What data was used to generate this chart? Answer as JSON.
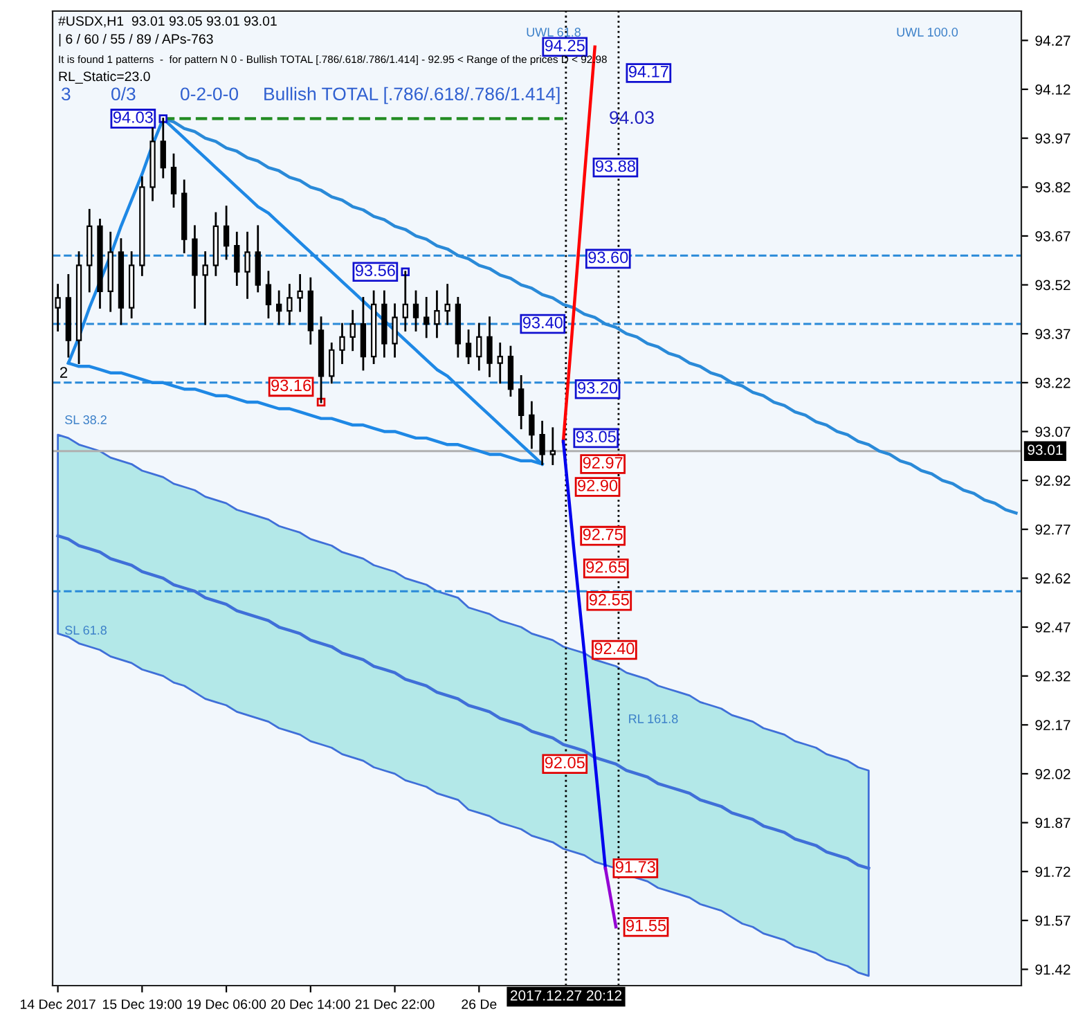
{
  "chart_data": {
    "type": "candlestick",
    "color": "#000000",
    "categories": [
      "14 Dec 2017",
      null,
      null,
      null,
      null,
      null,
      null,
      null,
      "15 Dec 19:00",
      null,
      null,
      null,
      null,
      null,
      null,
      null,
      "19 Dec 06:00",
      null,
      null,
      null,
      null,
      null,
      null,
      null,
      "20 Dec 14:00",
      null,
      null,
      null,
      null,
      null,
      null,
      null,
      "21 Dec 22:00",
      null,
      null,
      null,
      null,
      null,
      null,
      null,
      "26 De",
      null,
      null,
      null,
      null,
      null,
      null,
      null,
      null,
      null,
      null,
      null,
      null,
      null,
      null,
      null,
      null,
      null,
      null,
      null,
      null,
      null,
      null,
      null,
      null,
      null,
      null,
      null,
      null,
      null,
      null,
      null,
      null,
      null,
      null,
      null,
      null,
      null,
      null,
      null,
      null,
      null,
      null,
      null,
      null,
      null,
      null,
      null,
      null,
      null,
      null,
      null
    ],
    "ohlc": [
      [
        93.45,
        93.52,
        93.38,
        93.48
      ],
      [
        93.48,
        93.55,
        93.3,
        93.35
      ],
      [
        93.35,
        93.62,
        93.28,
        93.58
      ],
      [
        93.58,
        93.75,
        93.5,
        93.7
      ],
      [
        93.7,
        93.72,
        93.45,
        93.5
      ],
      [
        93.5,
        93.68,
        93.44,
        93.62
      ],
      [
        93.62,
        93.66,
        93.4,
        93.45
      ],
      [
        93.45,
        93.62,
        93.42,
        93.58
      ],
      [
        93.58,
        93.85,
        93.55,
        93.82
      ],
      [
        93.82,
        94.0,
        93.78,
        93.96
      ],
      [
        93.96,
        94.03,
        93.85,
        93.88
      ],
      [
        93.88,
        93.92,
        93.76,
        93.8
      ],
      [
        93.8,
        93.84,
        93.62,
        93.66
      ],
      [
        93.66,
        93.7,
        93.45,
        93.55
      ],
      [
        93.55,
        93.62,
        93.4,
        93.58
      ],
      [
        93.58,
        93.74,
        93.55,
        93.7
      ],
      [
        93.7,
        93.76,
        93.6,
        93.64
      ],
      [
        93.64,
        93.68,
        93.52,
        93.56
      ],
      [
        93.56,
        93.68,
        93.48,
        93.62
      ],
      [
        93.62,
        93.7,
        93.5,
        93.52
      ],
      [
        93.52,
        93.56,
        93.42,
        93.46
      ],
      [
        93.46,
        93.5,
        93.4,
        93.44
      ],
      [
        93.44,
        93.52,
        93.4,
        93.48
      ],
      [
        93.48,
        93.55,
        93.44,
        93.5
      ],
      [
        93.5,
        93.54,
        93.34,
        93.38
      ],
      [
        93.38,
        93.42,
        93.16,
        93.24
      ],
      [
        93.24,
        93.34,
        93.22,
        93.32
      ],
      [
        93.32,
        93.4,
        93.28,
        93.36
      ],
      [
        93.36,
        93.44,
        93.32,
        93.4
      ],
      [
        93.4,
        93.48,
        93.26,
        93.3
      ],
      [
        93.3,
        93.5,
        93.28,
        93.46
      ],
      [
        93.46,
        93.5,
        93.3,
        93.34
      ],
      [
        93.34,
        93.46,
        93.3,
        93.42
      ],
      [
        93.42,
        93.56,
        93.38,
        93.46
      ],
      [
        93.46,
        93.5,
        93.38,
        93.42
      ],
      [
        93.42,
        93.48,
        93.36,
        93.4
      ],
      [
        93.4,
        93.5,
        93.36,
        93.44
      ],
      [
        93.44,
        93.52,
        93.4,
        93.46
      ],
      [
        93.46,
        93.48,
        93.3,
        93.34
      ],
      [
        93.34,
        93.38,
        93.28,
        93.3
      ],
      [
        93.3,
        93.4,
        93.26,
        93.36
      ],
      [
        93.36,
        93.42,
        93.24,
        93.28
      ],
      [
        93.28,
        93.34,
        93.22,
        93.3
      ],
      [
        93.3,
        93.33,
        93.18,
        93.2
      ],
      [
        93.2,
        93.24,
        93.08,
        93.12
      ],
      [
        93.12,
        93.16,
        93.02,
        93.06
      ],
      [
        93.06,
        93.1,
        92.97,
        93.0
      ],
      [
        93.0,
        93.08,
        92.97,
        93.01
      ],
      null,
      null,
      null,
      null,
      null,
      null,
      null,
      null,
      null,
      null,
      null,
      null,
      null,
      null,
      null,
      null,
      null,
      null,
      null,
      null,
      null,
      null,
      null,
      null,
      null,
      null,
      null,
      null,
      null,
      null,
      null,
      null,
      null,
      null,
      null,
      null,
      null,
      null,
      null,
      null,
      null,
      null,
      null,
      null
    ],
    "series": [
      {
        "type": "line",
        "color": "#1e88e5",
        "line_style": "solid",
        "values": [
          null,
          93.28,
          93.36,
          93.45,
          93.53,
          93.61,
          93.7,
          93.78,
          93.86,
          93.95,
          94.03,
          null,
          null,
          null,
          null,
          null,
          null,
          null,
          null,
          null,
          null,
          null,
          null,
          null,
          null,
          null,
          null,
          null,
          null,
          null,
          null,
          null,
          null,
          null,
          null,
          null,
          null,
          null,
          null,
          null,
          null,
          null,
          null,
          null,
          null,
          null,
          null,
          null,
          null,
          null,
          null,
          null,
          null,
          null,
          null,
          null,
          null,
          null,
          null,
          null,
          null,
          null,
          null,
          null,
          null,
          null,
          null,
          null,
          null,
          null,
          null,
          null,
          null,
          null,
          null,
          null,
          null,
          null,
          null,
          null,
          null,
          null,
          null,
          null,
          null,
          null,
          null,
          null,
          null,
          null,
          null,
          null
        ]
      },
      {
        "type": "line",
        "color": "#1e88e5",
        "line_style": "solid",
        "values": [
          null,
          null,
          null,
          null,
          null,
          null,
          null,
          null,
          null,
          null,
          94.03,
          94.0,
          93.97,
          93.94,
          93.91,
          93.88,
          93.85,
          93.82,
          93.79,
          93.76,
          93.74,
          93.71,
          93.68,
          93.65,
          93.62,
          93.59,
          93.56,
          93.53,
          93.5,
          93.47,
          93.44,
          93.41,
          93.38,
          93.35,
          93.32,
          93.29,
          93.26,
          93.24,
          93.21,
          93.18,
          93.15,
          93.12,
          93.09,
          93.06,
          93.03,
          93.0,
          92.97,
          null,
          null,
          null,
          null,
          null,
          null,
          null,
          null,
          null,
          null,
          null,
          null,
          null,
          null,
          null,
          null,
          null,
          null,
          null,
          null,
          null,
          null,
          null,
          null,
          null,
          null,
          null,
          null,
          null,
          null,
          null,
          null,
          null,
          null,
          null,
          null,
          null,
          null,
          null,
          null,
          null,
          null,
          null,
          null,
          null
        ]
      },
      {
        "type": "line",
        "color": "#1e88e5",
        "line_style": "solid",
        "values": [
          null,
          93.28,
          93.27,
          93.27,
          93.26,
          93.25,
          93.25,
          93.24,
          93.23,
          93.22,
          93.22,
          93.21,
          93.2,
          93.2,
          93.19,
          93.18,
          93.18,
          93.17,
          93.16,
          93.16,
          93.15,
          93.14,
          93.14,
          93.13,
          93.12,
          93.11,
          93.11,
          93.1,
          93.09,
          93.09,
          93.08,
          93.07,
          93.07,
          93.06,
          93.05,
          93.05,
          93.04,
          93.03,
          93.03,
          93.02,
          93.01,
          93.0,
          93.0,
          92.99,
          92.98,
          92.98,
          92.97,
          null,
          null,
          null,
          null,
          null,
          null,
          null,
          null,
          null,
          null,
          null,
          null,
          null,
          null,
          null,
          null,
          null,
          null,
          null,
          null,
          null,
          null,
          null,
          null,
          null,
          null,
          null,
          null,
          null,
          null,
          null,
          null,
          null,
          null,
          null,
          null,
          null,
          null,
          null,
          null,
          null,
          null,
          null,
          null,
          null
        ]
      },
      {
        "type": "line",
        "color": "#3f6fd8",
        "line_style": "solid",
        "values": [
          92.75,
          92.74,
          92.72,
          92.71,
          92.7,
          92.68,
          92.67,
          92.66,
          92.64,
          92.63,
          92.62,
          92.6,
          92.59,
          92.58,
          92.56,
          92.55,
          92.54,
          92.52,
          92.51,
          92.5,
          92.49,
          92.47,
          92.46,
          92.45,
          92.43,
          92.42,
          92.41,
          92.39,
          92.38,
          92.37,
          92.35,
          92.34,
          92.33,
          92.31,
          92.3,
          92.29,
          92.27,
          92.26,
          92.25,
          92.23,
          92.22,
          92.21,
          92.19,
          92.18,
          92.17,
          92.15,
          92.14,
          92.13,
          92.11,
          92.1,
          92.09,
          92.07,
          92.06,
          92.05,
          92.03,
          92.02,
          92.01,
          91.99,
          91.98,
          91.97,
          91.96,
          91.94,
          91.93,
          91.92,
          91.9,
          91.89,
          91.88,
          91.86,
          91.85,
          91.84,
          91.82,
          91.81,
          91.8,
          91.78,
          91.77,
          91.76,
          91.74,
          91.73,
          null,
          null,
          null,
          null,
          null,
          null,
          null,
          null,
          null,
          null,
          null,
          null,
          null,
          null
        ],
        "lower": [
          92.45,
          92.44,
          92.42,
          92.41,
          92.4,
          92.38,
          92.37,
          92.36,
          92.34,
          92.33,
          92.32,
          92.3,
          92.29,
          92.27,
          92.25,
          92.24,
          92.23,
          92.21,
          92.2,
          92.19,
          92.18,
          92.16,
          92.15,
          92.14,
          92.12,
          92.11,
          92.1,
          92.08,
          92.07,
          92.06,
          92.04,
          92.03,
          92.02,
          92.0,
          91.99,
          91.98,
          91.96,
          91.95,
          91.94,
          91.91,
          91.9,
          91.89,
          91.87,
          91.86,
          91.85,
          91.83,
          91.82,
          91.81,
          91.79,
          91.78,
          91.77,
          91.75,
          91.74,
          91.73,
          91.71,
          91.7,
          91.69,
          91.67,
          91.66,
          91.65,
          91.64,
          91.62,
          91.61,
          91.6,
          91.58,
          91.56,
          91.55,
          91.53,
          91.52,
          91.51,
          91.49,
          91.48,
          91.47,
          91.45,
          91.44,
          91.43,
          91.41,
          91.4,
          null,
          null,
          null,
          null,
          null,
          null,
          null,
          null,
          null,
          null,
          null,
          null,
          null,
          null
        ],
        "upper": [
          93.06,
          93.05,
          93.03,
          93.02,
          93.01,
          92.99,
          92.98,
          92.97,
          92.95,
          92.94,
          92.93,
          92.91,
          92.9,
          92.89,
          92.87,
          92.86,
          92.85,
          92.83,
          92.82,
          92.81,
          92.8,
          92.78,
          92.77,
          92.76,
          92.74,
          92.73,
          92.72,
          92.7,
          92.69,
          92.68,
          92.66,
          92.65,
          92.64,
          92.62,
          92.61,
          92.6,
          92.58,
          92.57,
          92.56,
          92.53,
          92.52,
          92.51,
          92.49,
          92.48,
          92.47,
          92.45,
          92.44,
          92.43,
          92.41,
          92.4,
          92.39,
          92.37,
          92.36,
          92.35,
          92.33,
          92.32,
          92.31,
          92.29,
          92.28,
          92.27,
          92.26,
          92.24,
          92.23,
          92.22,
          92.2,
          92.19,
          92.18,
          92.16,
          92.15,
          92.14,
          92.12,
          92.11,
          92.1,
          92.08,
          92.07,
          92.06,
          92.04,
          92.03,
          null,
          null,
          null,
          null,
          null,
          null,
          null,
          null,
          null,
          null,
          null,
          null,
          null,
          null
        ]
      },
      {
        "type": "line",
        "color": "#2a8ad8",
        "line_style": "solid",
        "values": [
          null,
          null,
          null,
          null,
          null,
          null,
          null,
          null,
          null,
          null,
          94.03,
          94.02,
          94.0,
          93.99,
          93.97,
          93.96,
          93.94,
          93.93,
          93.91,
          93.9,
          93.88,
          93.87,
          93.85,
          93.84,
          93.82,
          93.81,
          93.79,
          93.78,
          93.76,
          93.75,
          93.73,
          93.72,
          93.7,
          93.69,
          93.67,
          93.66,
          93.64,
          93.63,
          93.61,
          93.6,
          93.58,
          93.57,
          93.55,
          93.54,
          93.52,
          93.51,
          93.49,
          93.48,
          93.46,
          93.45,
          93.43,
          93.42,
          93.4,
          93.39,
          93.37,
          93.36,
          93.34,
          93.33,
          93.31,
          93.3,
          93.28,
          93.27,
          93.25,
          93.24,
          93.22,
          93.21,
          93.19,
          93.18,
          93.16,
          93.15,
          93.13,
          93.12,
          93.1,
          93.09,
          93.07,
          93.06,
          93.04,
          93.03,
          93.01,
          93.0,
          92.98,
          92.97,
          92.95,
          92.94,
          92.92,
          92.91,
          92.89,
          92.88,
          92.86,
          92.85,
          92.83,
          92.82
        ]
      },
      {
        "type": "line",
        "color": "#228b22",
        "line_style": "dashed",
        "values": [
          null,
          null,
          null,
          null,
          null,
          null,
          null,
          null,
          null,
          null,
          94.03,
          94.03,
          94.03,
          94.03,
          94.03,
          94.03,
          94.03,
          94.03,
          94.03,
          94.03,
          94.03,
          94.03,
          94.03,
          94.03,
          94.03,
          94.03,
          94.03,
          94.03,
          94.03,
          94.03,
          94.03,
          94.03,
          94.03,
          94.03,
          94.03,
          94.03,
          94.03,
          94.03,
          94.03,
          94.03,
          94.03,
          94.03,
          94.03,
          94.03,
          94.03,
          94.03,
          94.03,
          94.03,
          94.03,
          null,
          null,
          null,
          null,
          null,
          null,
          null,
          null,
          null,
          null,
          null,
          null,
          null,
          null,
          null,
          null,
          null,
          null,
          null,
          null,
          null,
          null,
          null,
          null,
          null,
          null,
          null,
          null,
          null,
          null,
          null,
          null,
          null,
          null,
          null,
          null,
          null,
          null,
          null,
          null,
          null,
          null,
          null
        ]
      },
      {
        "type": "line",
        "color": "#ff0000",
        "line_style": "solid",
        "values": [
          null,
          null,
          null,
          null,
          null,
          null,
          null,
          null,
          null,
          null,
          null,
          null,
          null,
          null,
          null,
          null,
          null,
          null,
          null,
          null,
          null,
          null,
          null,
          null,
          null,
          null,
          null,
          null,
          null,
          null,
          null,
          null,
          null,
          null,
          null,
          null,
          null,
          null,
          null,
          null,
          null,
          null,
          null,
          null,
          null,
          null,
          null,
          null,
          93.04,
          93.44,
          93.85,
          94.25,
          null,
          null,
          null,
          null,
          null,
          null,
          null,
          null,
          null,
          null,
          null,
          null,
          null,
          null,
          null,
          null,
          null,
          null,
          null,
          null,
          null,
          null,
          null,
          null,
          null,
          null,
          null,
          null,
          null,
          null,
          null,
          null,
          null,
          null,
          null,
          null,
          null,
          null,
          null,
          null
        ]
      },
      {
        "type": "line",
        "color": "#0000ee",
        "line_style": "solid",
        "values": [
          null,
          null,
          null,
          null,
          null,
          null,
          null,
          null,
          null,
          null,
          null,
          null,
          null,
          null,
          null,
          null,
          null,
          null,
          null,
          null,
          null,
          null,
          null,
          null,
          null,
          null,
          null,
          null,
          null,
          null,
          null,
          null,
          null,
          null,
          null,
          null,
          null,
          null,
          null,
          null,
          null,
          null,
          null,
          null,
          null,
          null,
          null,
          null,
          93.04,
          92.71,
          92.39,
          92.06,
          91.73,
          null,
          null,
          null,
          null,
          null,
          null,
          null,
          null,
          null,
          null,
          null,
          null,
          null,
          null,
          null,
          null,
          null,
          null,
          null,
          null,
          null,
          null,
          null,
          null,
          null,
          null,
          null,
          null,
          null,
          null,
          null,
          null,
          null,
          null,
          null,
          null,
          null,
          null,
          null
        ]
      },
      {
        "type": "line",
        "color": "#9400d3",
        "line_style": "solid",
        "values": [
          null,
          null,
          null,
          null,
          null,
          null,
          null,
          null,
          null,
          null,
          null,
          null,
          null,
          null,
          null,
          null,
          null,
          null,
          null,
          null,
          null,
          null,
          null,
          null,
          null,
          null,
          null,
          null,
          null,
          null,
          null,
          null,
          null,
          null,
          null,
          null,
          null,
          null,
          null,
          null,
          null,
          null,
          null,
          null,
          null,
          null,
          null,
          null,
          null,
          null,
          null,
          null,
          91.73,
          91.55,
          null,
          null,
          null,
          null,
          null,
          null,
          null,
          null,
          null,
          null,
          null,
          null,
          null,
          null,
          null,
          null,
          null,
          null,
          null,
          null,
          null,
          null,
          null,
          null,
          null,
          null,
          null,
          null,
          null,
          null,
          null,
          null,
          null,
          null,
          null,
          null,
          null,
          null
        ]
      },
      {
        "type": "scatter",
        "marker": "square",
        "values": [
          null,
          null,
          null,
          null,
          null,
          null,
          null,
          null,
          null,
          null,
          94.03,
          null,
          null,
          null,
          null,
          null,
          null,
          null,
          null,
          null,
          null,
          null,
          null,
          null,
          null,
          93.16,
          null,
          null,
          null,
          null,
          null,
          null,
          null,
          93.56,
          null,
          null,
          null,
          null,
          null,
          null,
          null,
          null,
          null,
          null,
          null,
          null,
          null,
          null,
          null,
          null,
          null,
          null,
          null,
          null,
          null,
          null,
          null,
          null,
          null,
          null,
          null,
          null,
          null,
          null,
          null,
          null,
          null,
          null,
          null,
          null,
          null,
          null,
          null,
          null,
          null,
          null,
          null,
          null,
          null,
          null,
          null,
          null,
          null,
          null,
          null,
          null,
          null,
          null,
          null,
          null,
          null,
          null
        ],
        "colors": [
          null,
          null,
          null,
          null,
          null,
          null,
          null,
          null,
          null,
          null,
          "#1010d0",
          null,
          null,
          null,
          null,
          null,
          null,
          null,
          null,
          null,
          null,
          null,
          null,
          null,
          null,
          "#e00000",
          null,
          null,
          null,
          null,
          null,
          null,
          null,
          "#1010d0",
          null,
          null,
          null,
          null,
          null,
          null,
          null,
          null,
          null,
          null,
          null,
          null,
          null,
          null,
          null,
          null,
          null,
          null,
          null,
          null,
          null,
          null,
          null,
          null,
          null,
          null,
          null,
          null,
          null,
          null,
          null,
          null,
          null,
          null,
          null,
          null,
          null,
          null,
          null,
          null,
          null,
          null,
          null,
          null,
          null,
          null,
          null,
          null,
          null,
          null,
          null,
          null,
          null,
          null,
          null,
          null,
          null,
          null
        ],
        "value_labels": [
          null,
          null,
          null,
          null,
          null,
          null,
          null,
          null,
          null,
          null,
          "94.03",
          null,
          null,
          null,
          null,
          null,
          null,
          null,
          null,
          null,
          null,
          null,
          null,
          null,
          null,
          "93.16",
          null,
          null,
          null,
          null,
          null,
          null,
          null,
          "93.56",
          null,
          null,
          null,
          null,
          null,
          null,
          null,
          null,
          null,
          null,
          null,
          null,
          null,
          null,
          null,
          null,
          null,
          null,
          null,
          null,
          null,
          null,
          null,
          null,
          null,
          null,
          null,
          null,
          null,
          null,
          null,
          null,
          null,
          null,
          null,
          null,
          null,
          null,
          null,
          null,
          null,
          null,
          null,
          null,
          null,
          null,
          null,
          null,
          null,
          null,
          null,
          null,
          null,
          null,
          null,
          null,
          null,
          null
        ]
      }
    ],
    "ref_lines": [
      {
        "axis": "y",
        "value": 93.61,
        "color": "#2a8ad8",
        "line_style": "dashed"
      },
      {
        "axis": "y",
        "value": 93.4,
        "color": "#2a8ad8",
        "line_style": "dashed"
      },
      {
        "axis": "y",
        "value": 93.22,
        "color": "#2a8ad8",
        "line_style": "dashed"
      },
      {
        "axis": "y",
        "value": 92.58,
        "color": "#2a8ad8",
        "line_style": "dashed"
      },
      {
        "axis": "y",
        "value": 93.01,
        "color": "#b0b0b0",
        "line_style": "solid",
        "label": "93.01"
      }
    ],
    "ylim": [
      91.37,
      94.36
    ],
    "yticks": [
      91.42,
      91.57,
      91.72,
      91.87,
      92.02,
      92.17,
      92.32,
      92.47,
      92.62,
      92.77,
      92.92,
      93.07,
      93.22,
      93.37,
      93.52,
      93.67,
      93.82,
      93.97,
      94.12,
      94.27
    ],
    "annotations": [
      "#USDX,H1  93.01 93.05 93.01 93.01",
      "| 6 / 60 / 55 / 89 / APs-763",
      "It is found 1 patterns  -  for pattern N 0 - Bullish TOTAL [.786/.618/.786/1.414] - 92.95 < Range of the prices D < 92.98",
      "RL_Static=23.0",
      "3",
      "0/3",
      "0-2-0-0",
      "Bullish TOTAL [.786/.618/.786/1.414]",
      "94.03",
      "2017.12.27 20:12",
      "2",
      "UWL 61.8",
      "UWL 100.0",
      "SL 38.2",
      "SL 61.8",
      "RL 161.8",
      {
        "text": "94.25",
        "y": 94.25
      },
      {
        "text": "94.17",
        "y": 94.17
      },
      {
        "text": "93.88",
        "y": 93.88
      },
      {
        "text": "93.60",
        "y": 93.6
      },
      {
        "text": "93.40",
        "y": 93.4
      },
      {
        "text": "93.20",
        "y": 93.2
      },
      {
        "text": "93.05",
        "y": 93.05
      },
      {
        "text": "92.97",
        "y": 92.97
      },
      {
        "text": "92.90",
        "y": 92.9
      },
      {
        "text": "92.75",
        "y": 92.75
      },
      {
        "text": "92.65",
        "y": 92.65
      },
      {
        "text": "92.55",
        "y": 92.55
      },
      {
        "text": "92.40",
        "y": 92.4
      },
      {
        "text": "92.05",
        "y": 92.05
      },
      {
        "text": "91.73",
        "y": 91.73
      },
      {
        "text": "91.55",
        "y": 91.55
      }
    ]
  }
}
